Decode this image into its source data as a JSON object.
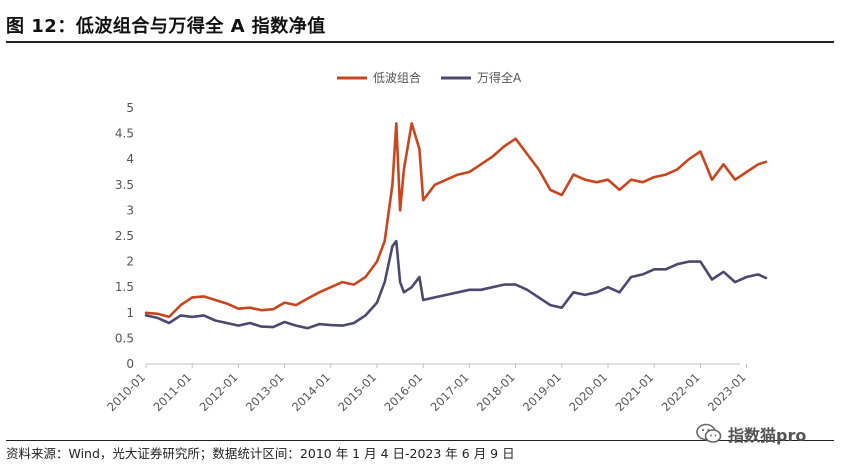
{
  "figure": {
    "title": "图 12：低波组合与万得全 A 指数净值",
    "source": "资料来源：Wind，光大证券研究所；数据统计区间：2010 年 1 月 4 日-2023 年 6 月 9 日",
    "watermark": "指数猫pro",
    "watermark_icon": "wechat-icon"
  },
  "chart_data": {
    "type": "line",
    "title": "",
    "xlabel": "",
    "ylabel": "",
    "x_ticks": [
      "2010-01",
      "2011-01",
      "2012-01",
      "2013-01",
      "2014-01",
      "2015-01",
      "2016-01",
      "2017-01",
      "2018-01",
      "2019-01",
      "2020-01",
      "2021-01",
      "2022-01",
      "2023-01"
    ],
    "y_ticks": [
      "0",
      "0.5",
      "1",
      "1.5",
      "2",
      "2.5",
      "3",
      "3.5",
      "4",
      "4.5",
      "5"
    ],
    "ylim": [
      0,
      5
    ],
    "grid": false,
    "legend_position": "top-center",
    "series": [
      {
        "name": "低波组合",
        "color": "#c8461f",
        "points": [
          [
            "2010-01",
            1.0
          ],
          [
            "2010-04",
            0.98
          ],
          [
            "2010-07",
            0.92
          ],
          [
            "2010-10",
            1.15
          ],
          [
            "2011-01",
            1.3
          ],
          [
            "2011-04",
            1.32
          ],
          [
            "2011-07",
            1.25
          ],
          [
            "2011-10",
            1.18
          ],
          [
            "2012-01",
            1.08
          ],
          [
            "2012-04",
            1.1
          ],
          [
            "2012-07",
            1.05
          ],
          [
            "2012-10",
            1.07
          ],
          [
            "2013-01",
            1.2
          ],
          [
            "2013-04",
            1.15
          ],
          [
            "2013-07",
            1.28
          ],
          [
            "2013-10",
            1.4
          ],
          [
            "2014-01",
            1.5
          ],
          [
            "2014-04",
            1.6
          ],
          [
            "2014-07",
            1.55
          ],
          [
            "2014-10",
            1.7
          ],
          [
            "2015-01",
            2.0
          ],
          [
            "2015-03",
            2.4
          ],
          [
            "2015-05",
            3.5
          ],
          [
            "2015-06",
            4.7
          ],
          [
            "2015-07",
            3.0
          ],
          [
            "2015-08",
            3.8
          ],
          [
            "2015-10",
            4.7
          ],
          [
            "2015-12",
            4.2
          ],
          [
            "2016-01",
            3.2
          ],
          [
            "2016-04",
            3.5
          ],
          [
            "2016-07",
            3.6
          ],
          [
            "2016-10",
            3.7
          ],
          [
            "2017-01",
            3.75
          ],
          [
            "2017-04",
            3.9
          ],
          [
            "2017-07",
            4.05
          ],
          [
            "2017-10",
            4.25
          ],
          [
            "2018-01",
            4.4
          ],
          [
            "2018-04",
            4.1
          ],
          [
            "2018-07",
            3.8
          ],
          [
            "2018-10",
            3.4
          ],
          [
            "2019-01",
            3.3
          ],
          [
            "2019-04",
            3.7
          ],
          [
            "2019-07",
            3.6
          ],
          [
            "2019-10",
            3.55
          ],
          [
            "2020-01",
            3.6
          ],
          [
            "2020-04",
            3.4
          ],
          [
            "2020-07",
            3.6
          ],
          [
            "2020-10",
            3.55
          ],
          [
            "2021-01",
            3.65
          ],
          [
            "2021-04",
            3.7
          ],
          [
            "2021-07",
            3.8
          ],
          [
            "2021-10",
            4.0
          ],
          [
            "2022-01",
            4.15
          ],
          [
            "2022-04",
            3.6
          ],
          [
            "2022-07",
            3.9
          ],
          [
            "2022-10",
            3.6
          ],
          [
            "2023-01",
            3.75
          ],
          [
            "2023-04",
            3.9
          ],
          [
            "2023-06",
            3.95
          ]
        ]
      },
      {
        "name": "万得全A",
        "color": "#4b4a6e",
        "points": [
          [
            "2010-01",
            0.95
          ],
          [
            "2010-04",
            0.9
          ],
          [
            "2010-07",
            0.8
          ],
          [
            "2010-10",
            0.95
          ],
          [
            "2011-01",
            0.92
          ],
          [
            "2011-04",
            0.95
          ],
          [
            "2011-07",
            0.85
          ],
          [
            "2011-10",
            0.8
          ],
          [
            "2012-01",
            0.75
          ],
          [
            "2012-04",
            0.8
          ],
          [
            "2012-07",
            0.73
          ],
          [
            "2012-10",
            0.72
          ],
          [
            "2013-01",
            0.82
          ],
          [
            "2013-04",
            0.75
          ],
          [
            "2013-07",
            0.7
          ],
          [
            "2013-10",
            0.78
          ],
          [
            "2014-01",
            0.76
          ],
          [
            "2014-04",
            0.75
          ],
          [
            "2014-07",
            0.8
          ],
          [
            "2014-10",
            0.95
          ],
          [
            "2015-01",
            1.2
          ],
          [
            "2015-03",
            1.6
          ],
          [
            "2015-05",
            2.3
          ],
          [
            "2015-06",
            2.4
          ],
          [
            "2015-07",
            1.6
          ],
          [
            "2015-08",
            1.4
          ],
          [
            "2015-10",
            1.5
          ],
          [
            "2015-12",
            1.7
          ],
          [
            "2016-01",
            1.25
          ],
          [
            "2016-04",
            1.3
          ],
          [
            "2016-07",
            1.35
          ],
          [
            "2016-10",
            1.4
          ],
          [
            "2017-01",
            1.45
          ],
          [
            "2017-04",
            1.45
          ],
          [
            "2017-07",
            1.5
          ],
          [
            "2017-10",
            1.55
          ],
          [
            "2018-01",
            1.55
          ],
          [
            "2018-04",
            1.45
          ],
          [
            "2018-07",
            1.3
          ],
          [
            "2018-10",
            1.15
          ],
          [
            "2019-01",
            1.1
          ],
          [
            "2019-04",
            1.4
          ],
          [
            "2019-07",
            1.35
          ],
          [
            "2019-10",
            1.4
          ],
          [
            "2020-01",
            1.5
          ],
          [
            "2020-04",
            1.4
          ],
          [
            "2020-07",
            1.7
          ],
          [
            "2020-10",
            1.75
          ],
          [
            "2021-01",
            1.85
          ],
          [
            "2021-04",
            1.85
          ],
          [
            "2021-07",
            1.95
          ],
          [
            "2021-10",
            2.0
          ],
          [
            "2022-01",
            2.0
          ],
          [
            "2022-04",
            1.65
          ],
          [
            "2022-07",
            1.8
          ],
          [
            "2022-10",
            1.6
          ],
          [
            "2023-01",
            1.7
          ],
          [
            "2023-04",
            1.75
          ],
          [
            "2023-06",
            1.68
          ]
        ]
      }
    ]
  }
}
